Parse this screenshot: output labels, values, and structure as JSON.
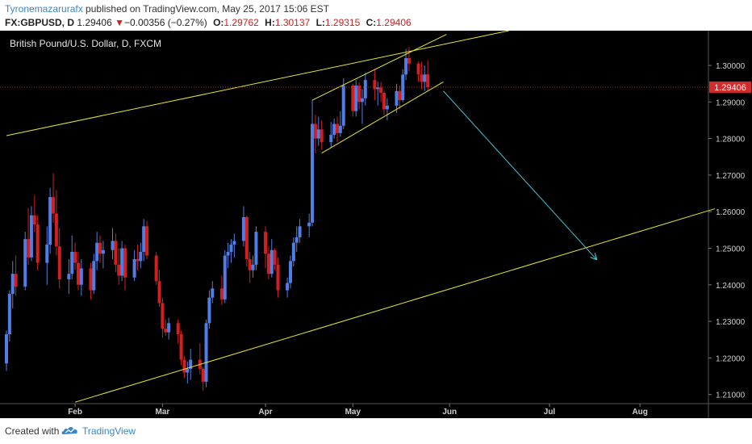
{
  "header": {
    "author": "Tyronemazarurafx",
    "published_text": "published on TradingView.com, May 25, 2017 15:06 EST",
    "symbol": "FX:GBPUSD, D",
    "last": "1.29406",
    "change_arrow": "▼",
    "change": "−0.00356 (−0.27%)",
    "o_label": "O:",
    "o_value": "1.29762",
    "h_label": "H:",
    "h_value": "1.30137",
    "l_label": "L:",
    "l_value": "1.29315",
    "c_label": "C:",
    "c_value": "1.29406"
  },
  "footer": {
    "created_with": "Created with",
    "brand": "TradingView",
    "brand_icon": "tradingview-cloud-icon"
  },
  "colors": {
    "up": "#4f7fe6",
    "down": "#d41f1f",
    "trendline": "#e8e82e",
    "forecast_arrow": "#3ec6d2",
    "price_line": "#d42a2a",
    "price_badge": "#d42a2a",
    "background": "#000000"
  },
  "chart_data": {
    "type": "candlestick",
    "title": "British Pound/U.S. Dollar, D, FXCM",
    "last_price": 1.29406,
    "last_price_label": "1.29406",
    "y_ticks": [
      "1.30000",
      "1.29000",
      "1.28000",
      "1.27000",
      "1.26000",
      "1.25000",
      "1.24000",
      "1.23000",
      "1.22000",
      "1.21000"
    ],
    "x_ticks": [
      {
        "label": "Feb",
        "date": "2017-02-01"
      },
      {
        "label": "Mar",
        "date": "2017-03-01"
      },
      {
        "label": "Apr",
        "date": "2017-04-03"
      },
      {
        "label": "May",
        "date": "2017-05-01"
      },
      {
        "label": "Jun",
        "date": "2017-06-01"
      },
      {
        "label": "Jul",
        "date": "2017-07-03"
      },
      {
        "label": "Aug",
        "date": "2017-08-01"
      }
    ],
    "x_range": [
      "2017-01-10",
      "2017-08-25"
    ],
    "ylim": [
      1.2075,
      1.3095
    ],
    "candles": [
      {
        "d": "2017-01-10",
        "o": 1.2185,
        "h": 1.2275,
        "l": 1.2165,
        "c": 1.2265
      },
      {
        "d": "2017-01-11",
        "o": 1.2265,
        "h": 1.2385,
        "l": 1.2245,
        "c": 1.2375
      },
      {
        "d": "2017-01-12",
        "o": 1.2375,
        "h": 1.2465,
        "l": 1.2335,
        "c": 1.243
      },
      {
        "d": "2017-01-13",
        "o": 1.243,
        "h": 1.248,
        "l": 1.237,
        "c": 1.2395
      },
      {
        "d": "2017-01-16",
        "o": 1.2395,
        "h": 1.2545,
        "l": 1.2385,
        "c": 1.2525
      },
      {
        "d": "2017-01-17",
        "o": 1.2525,
        "h": 1.261,
        "l": 1.2455,
        "c": 1.2475
      },
      {
        "d": "2017-01-18",
        "o": 1.2475,
        "h": 1.2615,
        "l": 1.2465,
        "c": 1.259
      },
      {
        "d": "2017-01-19",
        "o": 1.259,
        "h": 1.2645,
        "l": 1.2545,
        "c": 1.2565
      },
      {
        "d": "2017-01-20",
        "o": 1.2565,
        "h": 1.259,
        "l": 1.244,
        "c": 1.246
      },
      {
        "d": "2017-01-23",
        "o": 1.246,
        "h": 1.256,
        "l": 1.24,
        "c": 1.251
      },
      {
        "d": "2017-01-24",
        "o": 1.251,
        "h": 1.2665,
        "l": 1.2485,
        "c": 1.264
      },
      {
        "d": "2017-01-25",
        "o": 1.264,
        "h": 1.2705,
        "l": 1.257,
        "c": 1.2595
      },
      {
        "d": "2017-01-26",
        "o": 1.2595,
        "h": 1.266,
        "l": 1.248,
        "c": 1.2505
      },
      {
        "d": "2017-01-27",
        "o": 1.2505,
        "h": 1.2555,
        "l": 1.239,
        "c": 1.2415
      },
      {
        "d": "2017-01-30",
        "o": 1.2415,
        "h": 1.247,
        "l": 1.2375,
        "c": 1.243
      },
      {
        "d": "2017-01-31",
        "o": 1.243,
        "h": 1.2535,
        "l": 1.2415,
        "c": 1.249
      },
      {
        "d": "2017-02-01",
        "o": 1.249,
        "h": 1.2515,
        "l": 1.244,
        "c": 1.246
      },
      {
        "d": "2017-02-02",
        "o": 1.246,
        "h": 1.249,
        "l": 1.2385,
        "c": 1.24
      },
      {
        "d": "2017-02-03",
        "o": 1.24,
        "h": 1.247,
        "l": 1.237,
        "c": 1.2445
      },
      {
        "d": "2017-02-06",
        "o": 1.2445,
        "h": 1.246,
        "l": 1.236,
        "c": 1.2385
      },
      {
        "d": "2017-02-07",
        "o": 1.2385,
        "h": 1.2485,
        "l": 1.2375,
        "c": 1.2465
      },
      {
        "d": "2017-02-08",
        "o": 1.2465,
        "h": 1.2545,
        "l": 1.244,
        "c": 1.2515
      },
      {
        "d": "2017-02-09",
        "o": 1.2515,
        "h": 1.2535,
        "l": 1.246,
        "c": 1.2485
      },
      {
        "d": "2017-02-10",
        "o": 1.2485,
        "h": 1.252,
        "l": 1.2445,
        "c": 1.2495
      },
      {
        "d": "2017-02-13",
        "o": 1.2495,
        "h": 1.2555,
        "l": 1.247,
        "c": 1.252
      },
      {
        "d": "2017-02-14",
        "o": 1.252,
        "h": 1.254,
        "l": 1.2435,
        "c": 1.2455
      },
      {
        "d": "2017-02-15",
        "o": 1.2455,
        "h": 1.25,
        "l": 1.24,
        "c": 1.2425
      },
      {
        "d": "2017-02-16",
        "o": 1.2425,
        "h": 1.252,
        "l": 1.241,
        "c": 1.25
      },
      {
        "d": "2017-02-17",
        "o": 1.25,
        "h": 1.251,
        "l": 1.2385,
        "c": 1.242
      },
      {
        "d": "2017-02-20",
        "o": 1.242,
        "h": 1.2495,
        "l": 1.241,
        "c": 1.247
      },
      {
        "d": "2017-02-21",
        "o": 1.247,
        "h": 1.251,
        "l": 1.244,
        "c": 1.2465
      },
      {
        "d": "2017-02-22",
        "o": 1.2465,
        "h": 1.2515,
        "l": 1.2445,
        "c": 1.249
      },
      {
        "d": "2017-02-23",
        "o": 1.249,
        "h": 1.258,
        "l": 1.2465,
        "c": 1.256
      },
      {
        "d": "2017-02-24",
        "o": 1.256,
        "h": 1.2575,
        "l": 1.247,
        "c": 1.248
      },
      {
        "d": "2017-02-27",
        "o": 1.248,
        "h": 1.249,
        "l": 1.24,
        "c": 1.241
      },
      {
        "d": "2017-02-28",
        "o": 1.241,
        "h": 1.244,
        "l": 1.234,
        "c": 1.235
      },
      {
        "d": "2017-03-01",
        "o": 1.235,
        "h": 1.2365,
        "l": 1.2255,
        "c": 1.228
      },
      {
        "d": "2017-03-02",
        "o": 1.228,
        "h": 1.2305,
        "l": 1.226,
        "c": 1.227
      },
      {
        "d": "2017-03-03",
        "o": 1.227,
        "h": 1.231,
        "l": 1.225,
        "c": 1.2295
      },
      {
        "d": "2017-03-06",
        "o": 1.2295,
        "h": 1.2305,
        "l": 1.224,
        "c": 1.2265
      },
      {
        "d": "2017-03-07",
        "o": 1.2265,
        "h": 1.2275,
        "l": 1.218,
        "c": 1.2195
      },
      {
        "d": "2017-03-08",
        "o": 1.2195,
        "h": 1.2205,
        "l": 1.2145,
        "c": 1.216
      },
      {
        "d": "2017-03-09",
        "o": 1.216,
        "h": 1.219,
        "l": 1.213,
        "c": 1.217
      },
      {
        "d": "2017-03-10",
        "o": 1.217,
        "h": 1.2225,
        "l": 1.214,
        "c": 1.2195
      },
      {
        "d": "2017-03-13",
        "o": 1.2195,
        "h": 1.224,
        "l": 1.2155,
        "c": 1.217
      },
      {
        "d": "2017-03-14",
        "o": 1.217,
        "h": 1.2175,
        "l": 1.211,
        "c": 1.2135
      },
      {
        "d": "2017-03-15",
        "o": 1.2135,
        "h": 1.2305,
        "l": 1.212,
        "c": 1.2295
      },
      {
        "d": "2017-03-16",
        "o": 1.2295,
        "h": 1.2385,
        "l": 1.228,
        "c": 1.2365
      },
      {
        "d": "2017-03-17",
        "o": 1.2365,
        "h": 1.241,
        "l": 1.235,
        "c": 1.239
      },
      {
        "d": "2017-03-20",
        "o": 1.239,
        "h": 1.2425,
        "l": 1.2345,
        "c": 1.236
      },
      {
        "d": "2017-03-21",
        "o": 1.236,
        "h": 1.2495,
        "l": 1.235,
        "c": 1.248
      },
      {
        "d": "2017-03-22",
        "o": 1.248,
        "h": 1.2515,
        "l": 1.2445,
        "c": 1.249
      },
      {
        "d": "2017-03-23",
        "o": 1.249,
        "h": 1.2525,
        "l": 1.246,
        "c": 1.251
      },
      {
        "d": "2017-03-24",
        "o": 1.251,
        "h": 1.254,
        "l": 1.2475,
        "c": 1.252
      },
      {
        "d": "2017-03-27",
        "o": 1.252,
        "h": 1.2615,
        "l": 1.2505,
        "c": 1.2585
      },
      {
        "d": "2017-03-28",
        "o": 1.2585,
        "h": 1.259,
        "l": 1.245,
        "c": 1.247
      },
      {
        "d": "2017-03-29",
        "o": 1.247,
        "h": 1.249,
        "l": 1.2405,
        "c": 1.244
      },
      {
        "d": "2017-03-30",
        "o": 1.244,
        "h": 1.248,
        "l": 1.242,
        "c": 1.2455
      },
      {
        "d": "2017-03-31",
        "o": 1.2455,
        "h": 1.256,
        "l": 1.244,
        "c": 1.2545
      },
      {
        "d": "2017-04-03",
        "o": 1.2545,
        "h": 1.256,
        "l": 1.2445,
        "c": 1.2485
      },
      {
        "d": "2017-04-04",
        "o": 1.2485,
        "h": 1.2505,
        "l": 1.2415,
        "c": 1.243
      },
      {
        "d": "2017-04-05",
        "o": 1.243,
        "h": 1.2525,
        "l": 1.242,
        "c": 1.2495
      },
      {
        "d": "2017-04-06",
        "o": 1.2495,
        "h": 1.25,
        "l": 1.244,
        "c": 1.2455
      },
      {
        "d": "2017-04-07",
        "o": 1.2455,
        "h": 1.2475,
        "l": 1.2365,
        "c": 1.2385
      },
      {
        "d": "2017-04-10",
        "o": 1.2385,
        "h": 1.242,
        "l": 1.2365,
        "c": 1.2405
      },
      {
        "d": "2017-04-11",
        "o": 1.2405,
        "h": 1.248,
        "l": 1.239,
        "c": 1.2465
      },
      {
        "d": "2017-04-12",
        "o": 1.2465,
        "h": 1.253,
        "l": 1.245,
        "c": 1.2515
      },
      {
        "d": "2017-04-13",
        "o": 1.2515,
        "h": 1.256,
        "l": 1.249,
        "c": 1.253
      },
      {
        "d": "2017-04-14",
        "o": 1.253,
        "h": 1.258,
        "l": 1.2515,
        "c": 1.256
      },
      {
        "d": "2017-04-17",
        "o": 1.256,
        "h": 1.2595,
        "l": 1.253,
        "c": 1.257
      },
      {
        "d": "2017-04-18",
        "o": 1.257,
        "h": 1.2905,
        "l": 1.256,
        "c": 1.284
      },
      {
        "d": "2017-04-19",
        "o": 1.284,
        "h": 1.2865,
        "l": 1.276,
        "c": 1.28
      },
      {
        "d": "2017-04-20",
        "o": 1.28,
        "h": 1.286,
        "l": 1.278,
        "c": 1.2825
      },
      {
        "d": "2017-04-21",
        "o": 1.2825,
        "h": 1.285,
        "l": 1.277,
        "c": 1.279
      },
      {
        "d": "2017-04-24",
        "o": 1.279,
        "h": 1.2845,
        "l": 1.2775,
        "c": 1.281
      },
      {
        "d": "2017-04-25",
        "o": 1.281,
        "h": 1.2855,
        "l": 1.28,
        "c": 1.284
      },
      {
        "d": "2017-04-26",
        "o": 1.284,
        "h": 1.286,
        "l": 1.279,
        "c": 1.2815
      },
      {
        "d": "2017-04-27",
        "o": 1.2815,
        "h": 1.2875,
        "l": 1.2805,
        "c": 1.2835
      },
      {
        "d": "2017-04-28",
        "o": 1.2835,
        "h": 1.2965,
        "l": 1.2825,
        "c": 1.2945
      },
      {
        "d": "2017-05-01",
        "o": 1.2945,
        "h": 1.295,
        "l": 1.286,
        "c": 1.2875
      },
      {
        "d": "2017-05-02",
        "o": 1.2875,
        "h": 1.296,
        "l": 1.286,
        "c": 1.2945
      },
      {
        "d": "2017-05-03",
        "o": 1.2945,
        "h": 1.2955,
        "l": 1.288,
        "c": 1.29
      },
      {
        "d": "2017-05-04",
        "o": 1.29,
        "h": 1.2935,
        "l": 1.284,
        "c": 1.291
      },
      {
        "d": "2017-05-05",
        "o": 1.291,
        "h": 1.298,
        "l": 1.289,
        "c": 1.296
      },
      {
        "d": "2017-05-08",
        "o": 1.296,
        "h": 1.299,
        "l": 1.2905,
        "c": 1.2935
      },
      {
        "d": "2017-05-09",
        "o": 1.2935,
        "h": 1.2955,
        "l": 1.289,
        "c": 1.294
      },
      {
        "d": "2017-05-10",
        "o": 1.294,
        "h": 1.2955,
        "l": 1.29,
        "c": 1.2925
      },
      {
        "d": "2017-05-11",
        "o": 1.2925,
        "h": 1.293,
        "l": 1.2865,
        "c": 1.288
      },
      {
        "d": "2017-05-12",
        "o": 1.288,
        "h": 1.291,
        "l": 1.285,
        "c": 1.289
      },
      {
        "d": "2017-05-15",
        "o": 1.289,
        "h": 1.295,
        "l": 1.287,
        "c": 1.293
      },
      {
        "d": "2017-05-16",
        "o": 1.293,
        "h": 1.2945,
        "l": 1.288,
        "c": 1.2905
      },
      {
        "d": "2017-05-17",
        "o": 1.2905,
        "h": 1.299,
        "l": 1.29,
        "c": 1.2975
      },
      {
        "d": "2017-05-18",
        "o": 1.2975,
        "h": 1.3045,
        "l": 1.296,
        "c": 1.302
      },
      {
        "d": "2017-05-19",
        "o": 1.302,
        "h": 1.305,
        "l": 1.2985,
        "c": 1.3005
      },
      {
        "d": "2017-05-22",
        "o": 1.3005,
        "h": 1.301,
        "l": 1.2955,
        "c": 1.2975
      },
      {
        "d": "2017-05-23",
        "o": 1.2975,
        "h": 1.301,
        "l": 1.2935,
        "c": 1.2955
      },
      {
        "d": "2017-05-24",
        "o": 1.2955,
        "h": 1.3,
        "l": 1.293,
        "c": 1.2975
      },
      {
        "d": "2017-05-25",
        "o": 1.29762,
        "h": 1.30137,
        "l": 1.29315,
        "c": 1.29406
      }
    ],
    "drawings": [
      {
        "kind": "trendline",
        "name": "upper-trendline",
        "points": [
          [
            "2017-01-10",
            1.2808
          ],
          [
            "2017-06-20",
            1.3095
          ]
        ]
      },
      {
        "kind": "trendline",
        "name": "lower-trendline",
        "points": [
          [
            "2017-02-01",
            1.2079
          ],
          [
            "2017-08-25",
            1.2608
          ]
        ]
      },
      {
        "kind": "trendline",
        "name": "wedge-upper-line",
        "points": [
          [
            "2017-04-18",
            1.2905
          ],
          [
            "2017-05-31",
            1.3085
          ]
        ]
      },
      {
        "kind": "trendline",
        "name": "wedge-lower-line",
        "points": [
          [
            "2017-04-21",
            1.276
          ],
          [
            "2017-05-30",
            1.2955
          ]
        ]
      },
      {
        "kind": "arrow",
        "name": "forecast-arrow",
        "points": [
          [
            "2017-05-30",
            1.293
          ],
          [
            "2017-07-18",
            1.247
          ]
        ]
      }
    ]
  }
}
